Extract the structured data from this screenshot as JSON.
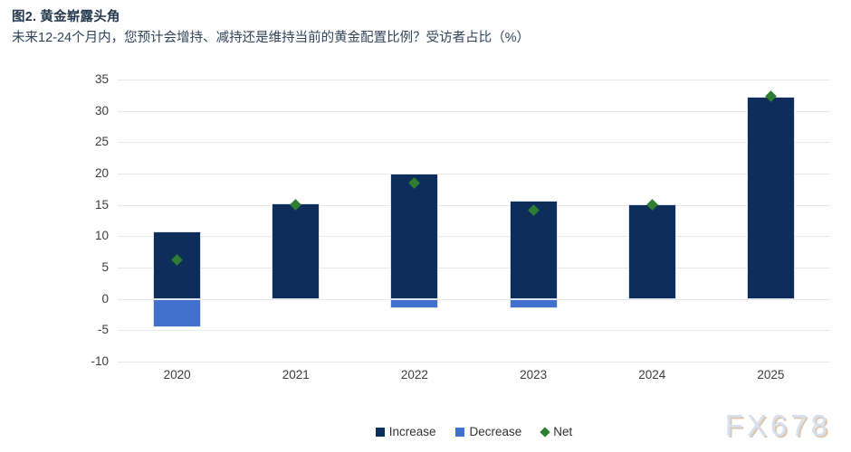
{
  "header": {
    "title": "图2. 黄金崭露头角",
    "subtitle": "未来12-24个月内，您预计会增持、减持还是维持当前的黄金配置比例？受访者占比（%）"
  },
  "watermark": "FX678",
  "colors": {
    "increase": "#0d2d5a",
    "decrease": "#4170cd",
    "net": "#2e7d32",
    "grid": "#e8e8e8",
    "title_text": "#25384e",
    "axis_text": "#3c3c3c"
  },
  "chart_data": {
    "type": "bar",
    "title": "图2. 黄金崭露头角",
    "subtitle": "未来12-24个月内，您预计会增持、减持还是维持当前的黄金配置比例？受访者占比（%）",
    "categories": [
      "2020",
      "2021",
      "2022",
      "2023",
      "2024",
      "2025"
    ],
    "series": [
      {
        "name": "Increase",
        "type": "bar",
        "color": "#0d2d5a",
        "values": [
          10.8,
          15.2,
          20.0,
          15.7,
          15.1,
          32.3
        ]
      },
      {
        "name": "Decrease",
        "type": "bar",
        "color": "#4170cd",
        "values": [
          -4.5,
          0,
          -1.5,
          -1.5,
          0,
          0
        ]
      },
      {
        "name": "Net",
        "type": "scatter",
        "marker": "diamond",
        "color": "#2e7d32",
        "values": [
          6.3,
          15.1,
          18.5,
          14.2,
          15.1,
          32.4
        ]
      }
    ],
    "ylim": [
      -10,
      35
    ],
    "yticks": [
      35,
      30,
      25,
      20,
      15,
      10,
      5,
      0,
      -5,
      -10
    ],
    "xlabel": "",
    "ylabel": "",
    "grid": true,
    "legend_position": "bottom"
  }
}
